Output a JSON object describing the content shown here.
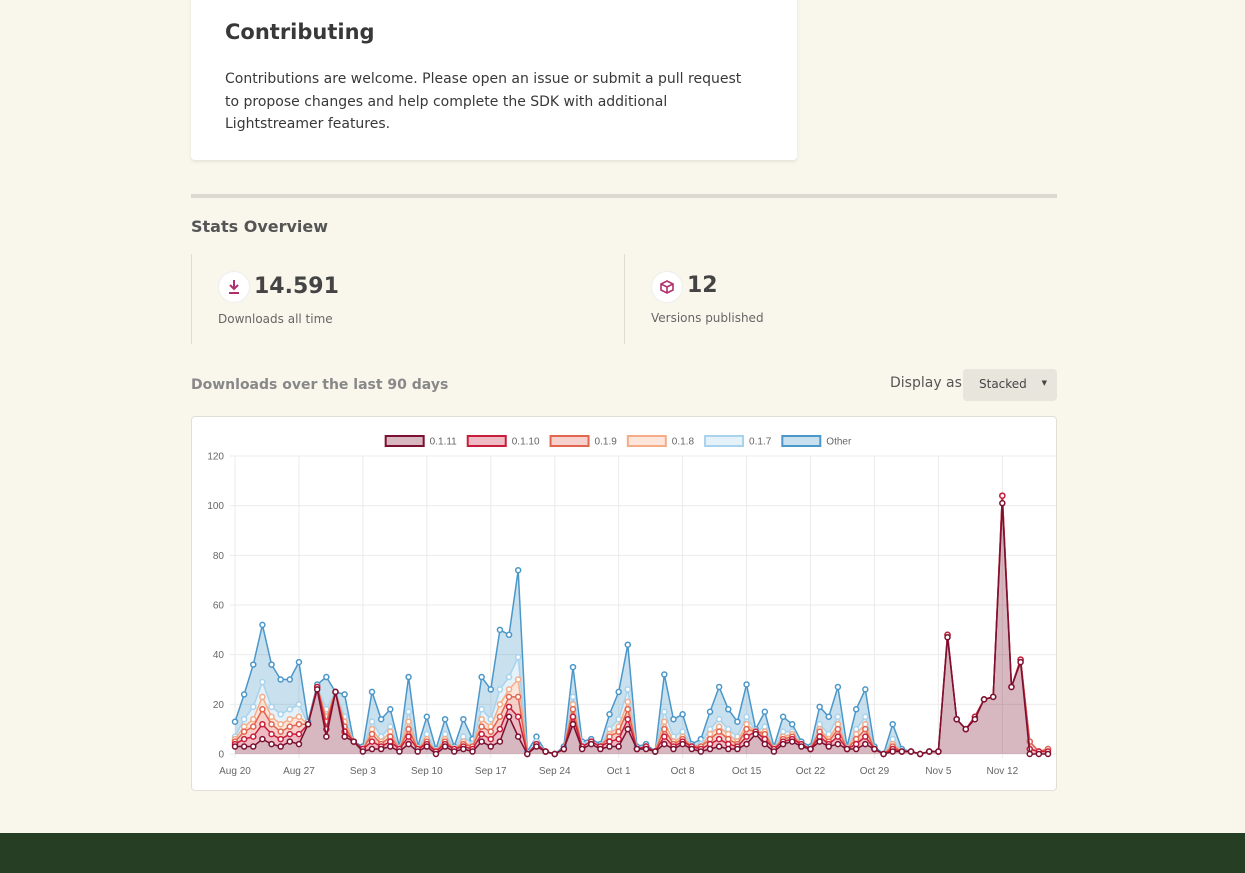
{
  "contributing": {
    "title": "Contributing",
    "text": "Contributions are welcome. Please open an issue or submit a pull request to propose changes and help complete the SDK with additional Lightstreamer features."
  },
  "stats": {
    "title": "Stats Overview",
    "downloads": {
      "value": "14.591",
      "label": "Downloads all time"
    },
    "versions": {
      "value": "12",
      "label": "Versions published"
    }
  },
  "downloads_header": {
    "title": "Downloads over the last 90 days",
    "display_label": "Display as",
    "display_option": "Stacked"
  },
  "chart_data": {
    "type": "stacked-area",
    "ylim": [
      0,
      120
    ],
    "yticks": [
      0,
      20,
      40,
      60,
      80,
      100,
      120
    ],
    "grid": true,
    "legend": "top",
    "categories": [
      "Aug 20",
      null,
      null,
      null,
      null,
      null,
      null,
      "Aug 27",
      null,
      null,
      null,
      null,
      null,
      null,
      "Sep 3",
      null,
      null,
      null,
      null,
      null,
      null,
      "Sep 10",
      null,
      null,
      null,
      null,
      null,
      null,
      "Sep 17",
      null,
      null,
      null,
      null,
      null,
      null,
      "Sep 24",
      null,
      null,
      null,
      null,
      null,
      null,
      "Oct 1",
      null,
      null,
      null,
      null,
      null,
      null,
      "Oct 8",
      null,
      null,
      null,
      null,
      null,
      null,
      "Oct 15",
      null,
      null,
      null,
      null,
      null,
      null,
      "Oct 22",
      null,
      null,
      null,
      null,
      null,
      null,
      "Oct 29",
      null,
      null,
      null,
      null,
      null,
      null,
      "Nov 5",
      null,
      null,
      null,
      null,
      null,
      null,
      "Nov 12",
      null,
      null,
      null,
      null,
      null
    ],
    "series": [
      {
        "name": "0.1.11",
        "color": "#7b1030",
        "values": [
          3,
          3,
          3,
          6,
          4,
          3,
          5,
          4,
          12,
          26,
          7,
          25,
          7,
          5,
          1,
          2,
          2,
          3,
          1,
          4,
          1,
          3,
          0,
          3,
          1,
          2,
          1,
          5,
          3,
          5,
          15,
          7,
          0,
          3,
          1,
          0,
          2,
          12,
          2,
          4,
          2,
          3,
          3,
          10,
          2,
          2,
          1,
          4,
          2,
          4,
          2,
          1,
          2,
          3,
          2,
          2,
          4,
          8,
          4,
          1,
          4,
          5,
          3,
          2,
          5,
          3,
          4,
          2,
          2,
          4,
          2,
          0,
          1,
          1,
          1,
          0,
          1,
          1,
          47,
          14,
          10,
          14,
          22,
          23,
          101,
          27,
          37,
          0,
          0,
          0
        ]
      },
      {
        "name": "0.1.10",
        "color": "#c81d3a",
        "values": [
          1,
          3,
          4,
          6,
          4,
          3,
          3,
          4,
          0,
          1,
          3,
          0,
          2,
          0,
          1,
          3,
          1,
          2,
          1,
          3,
          1,
          1,
          1,
          1,
          1,
          1,
          1,
          3,
          3,
          5,
          4,
          8,
          0,
          1,
          0,
          0,
          0,
          3,
          1,
          1,
          1,
          2,
          3,
          4,
          0,
          1,
          0,
          3,
          1,
          1,
          1,
          1,
          2,
          3,
          2,
          1,
          3,
          1,
          2,
          1,
          1,
          1,
          1,
          0,
          2,
          1,
          3,
          0,
          2,
          3,
          0,
          0,
          1,
          0,
          0,
          0,
          0,
          0,
          1,
          0,
          0,
          1,
          0,
          0,
          3,
          0,
          1,
          2,
          1,
          1
        ]
      },
      {
        "name": "0.1.9",
        "color": "#e2654f",
        "values": [
          1,
          3,
          4,
          6,
          4,
          3,
          3,
          4,
          0,
          0,
          3,
          0,
          2,
          0,
          0,
          3,
          1,
          2,
          0,
          3,
          0,
          1,
          0,
          1,
          0,
          1,
          1,
          3,
          3,
          5,
          4,
          8,
          0,
          0,
          0,
          0,
          0,
          3,
          0,
          0,
          0,
          2,
          3,
          4,
          0,
          0,
          0,
          3,
          1,
          1,
          0,
          1,
          2,
          3,
          2,
          1,
          3,
          0,
          2,
          0,
          1,
          1,
          0,
          0,
          2,
          1,
          3,
          0,
          2,
          3,
          0,
          0,
          1,
          0,
          0,
          0,
          0,
          0,
          0,
          0,
          0,
          0,
          0,
          0,
          0,
          0,
          0,
          3,
          0,
          1
        ]
      },
      {
        "name": "0.1.8",
        "color": "#f5ac88",
        "values": [
          1,
          2,
          3,
          5,
          3,
          3,
          3,
          3,
          0,
          0,
          2,
          0,
          2,
          0,
          0,
          2,
          1,
          2,
          0,
          3,
          0,
          1,
          0,
          1,
          0,
          1,
          0,
          3,
          2,
          5,
          3,
          7,
          0,
          0,
          0,
          0,
          0,
          2,
          0,
          0,
          0,
          1,
          2,
          3,
          0,
          0,
          0,
          3,
          1,
          1,
          0,
          0,
          2,
          2,
          2,
          1,
          2,
          0,
          1,
          0,
          1,
          1,
          0,
          0,
          1,
          1,
          2,
          0,
          2,
          2,
          0,
          0,
          1,
          0,
          0,
          0,
          0,
          0,
          0,
          0,
          0,
          0,
          0,
          0,
          0,
          0,
          0,
          0,
          0,
          0
        ]
      },
      {
        "name": "0.1.7",
        "color": "#a9d3ec",
        "values": [
          1,
          3,
          5,
          6,
          4,
          4,
          4,
          5,
          0,
          0,
          3,
          0,
          2,
          0,
          0,
          3,
          2,
          2,
          0,
          4,
          0,
          2,
          0,
          2,
          0,
          2,
          1,
          4,
          3,
          6,
          5,
          9,
          0,
          1,
          0,
          0,
          0,
          3,
          1,
          0,
          0,
          2,
          3,
          5,
          0,
          0,
          0,
          4,
          2,
          2,
          0,
          1,
          2,
          3,
          2,
          2,
          3,
          0,
          2,
          0,
          2,
          1,
          0,
          0,
          2,
          2,
          3,
          0,
          2,
          3,
          0,
          0,
          2,
          0,
          0,
          0,
          0,
          0,
          0,
          0,
          0,
          0,
          0,
          0,
          0,
          0,
          0,
          0,
          0,
          0
        ]
      },
      {
        "name": "Other",
        "color": "#4b97c9",
        "values": [
          6,
          10,
          17,
          23,
          17,
          14,
          12,
          17,
          1,
          1,
          13,
          0,
          9,
          0,
          1,
          12,
          7,
          7,
          1,
          14,
          1,
          7,
          1,
          6,
          1,
          7,
          2,
          13,
          12,
          24,
          17,
          35,
          1,
          2,
          0,
          0,
          1,
          12,
          1,
          1,
          1,
          6,
          11,
          18,
          1,
          1,
          0,
          15,
          7,
          7,
          1,
          2,
          7,
          13,
          8,
          6,
          13,
          1,
          6,
          1,
          6,
          3,
          1,
          1,
          7,
          7,
          12,
          1,
          8,
          11,
          1,
          0,
          6,
          1,
          0,
          0,
          0,
          0,
          0,
          0,
          0,
          0,
          0,
          0,
          0,
          0,
          0,
          0,
          0,
          0
        ]
      }
    ]
  }
}
